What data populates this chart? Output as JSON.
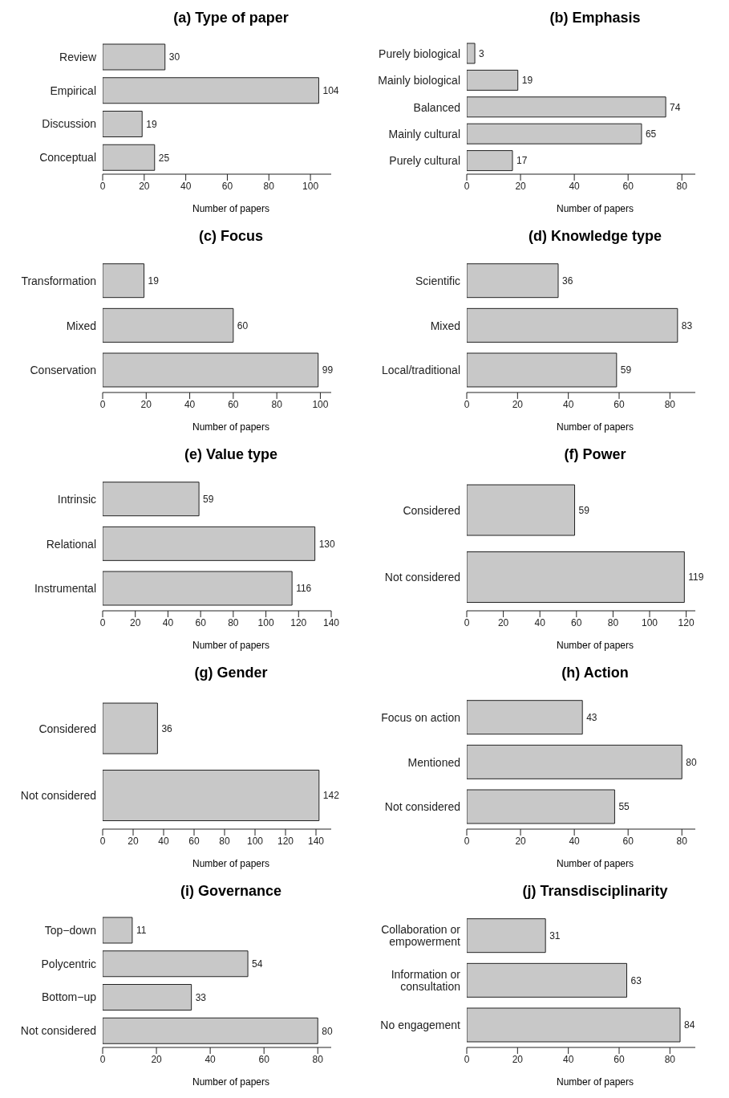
{
  "chart_data": [
    {
      "type": "bar",
      "orientation": "horizontal",
      "title": "(a) Type of paper",
      "xlabel": "Number of papers",
      "categories": [
        "Review",
        "Empirical",
        "Discussion",
        "Conceptual"
      ],
      "values": [
        30,
        104,
        19,
        25
      ],
      "color": "#c8c8c8",
      "xlim": [
        0,
        110
      ],
      "xticks": [
        0,
        20,
        40,
        60,
        80,
        100
      ],
      "data_labels": true,
      "grid": false,
      "legend": false
    },
    {
      "type": "bar",
      "orientation": "horizontal",
      "title": "(b) Emphasis",
      "xlabel": "Number of papers",
      "categories": [
        "Purely biological",
        "Mainly biological",
        "Balanced",
        "Mainly cultural",
        "Purely cultural"
      ],
      "values": [
        3,
        19,
        74,
        65,
        17
      ],
      "color": "#c8c8c8",
      "xlim": [
        0,
        85
      ],
      "xticks": [
        0,
        20,
        40,
        60,
        80
      ],
      "data_labels": true,
      "grid": false,
      "legend": false
    },
    {
      "type": "bar",
      "orientation": "horizontal",
      "title": "(c) Focus",
      "xlabel": "Number of papers",
      "categories": [
        "Transformation",
        "Mixed",
        "Conservation"
      ],
      "values": [
        19,
        60,
        99
      ],
      "color": "#c8c8c8",
      "xlim": [
        0,
        105
      ],
      "xticks": [
        0,
        20,
        40,
        60,
        80,
        100
      ],
      "data_labels": true,
      "grid": false,
      "legend": false
    },
    {
      "type": "bar",
      "orientation": "horizontal",
      "title": "(d) Knowledge type",
      "xlabel": "Number of papers",
      "categories": [
        "Scientific",
        "Mixed",
        "Local/traditional"
      ],
      "values": [
        36,
        83,
        59
      ],
      "color": "#c8c8c8",
      "xlim": [
        0,
        90
      ],
      "xticks": [
        0,
        20,
        40,
        60,
        80
      ],
      "data_labels": true,
      "grid": false,
      "legend": false
    },
    {
      "type": "bar",
      "orientation": "horizontal",
      "title": "(e) Value type",
      "xlabel": "Number of papers",
      "categories": [
        "Intrinsic",
        "Relational",
        "Instrumental"
      ],
      "values": [
        59,
        130,
        116
      ],
      "color": "#c8c8c8",
      "xlim": [
        0,
        140
      ],
      "xticks": [
        0,
        20,
        40,
        60,
        80,
        100,
        120,
        140
      ],
      "data_labels": true,
      "grid": false,
      "legend": false
    },
    {
      "type": "bar",
      "orientation": "horizontal",
      "title": "(f) Power",
      "xlabel": "Number of papers",
      "categories": [
        "Considered",
        "Not considered"
      ],
      "values": [
        59,
        119
      ],
      "color": "#c8c8c8",
      "xlim": [
        0,
        125
      ],
      "xticks": [
        0,
        20,
        40,
        60,
        80,
        100,
        120
      ],
      "data_labels": true,
      "grid": false,
      "legend": false
    },
    {
      "type": "bar",
      "orientation": "horizontal",
      "title": "(g) Gender",
      "xlabel": "Number of papers",
      "categories": [
        "Considered",
        "Not considered"
      ],
      "values": [
        36,
        142
      ],
      "color": "#c8c8c8",
      "xlim": [
        0,
        150
      ],
      "xticks": [
        0,
        20,
        40,
        60,
        80,
        100,
        120,
        140
      ],
      "data_labels": true,
      "grid": false,
      "legend": false
    },
    {
      "type": "bar",
      "orientation": "horizontal",
      "title": "(h) Action",
      "xlabel": "Number of papers",
      "categories": [
        "Focus on action",
        "Mentioned",
        "Not considered"
      ],
      "values": [
        43,
        80,
        55
      ],
      "color": "#c8c8c8",
      "xlim": [
        0,
        85
      ],
      "xticks": [
        0,
        20,
        40,
        60,
        80
      ],
      "data_labels": true,
      "grid": false,
      "legend": false
    },
    {
      "type": "bar",
      "orientation": "horizontal",
      "title": "(i) Governance",
      "xlabel": "Number of papers",
      "categories": [
        "Top−down",
        "Polycentric",
        "Bottom−up",
        "Not considered"
      ],
      "values": [
        11,
        54,
        33,
        80
      ],
      "color": "#c8c8c8",
      "xlim": [
        0,
        85
      ],
      "xticks": [
        0,
        20,
        40,
        60,
        80
      ],
      "data_labels": true,
      "grid": false,
      "legend": false
    },
    {
      "type": "bar",
      "orientation": "horizontal",
      "title": "(j) Transdisciplinarity",
      "xlabel": "Number of papers",
      "categories": [
        "Collaboration or\nempowerment",
        "Information or\nconsultation",
        "No engagement"
      ],
      "values": [
        31,
        63,
        84
      ],
      "color": "#c8c8c8",
      "xlim": [
        0,
        90
      ],
      "xticks": [
        0,
        20,
        40,
        60,
        80
      ],
      "data_labels": true,
      "grid": false,
      "legend": false
    }
  ]
}
